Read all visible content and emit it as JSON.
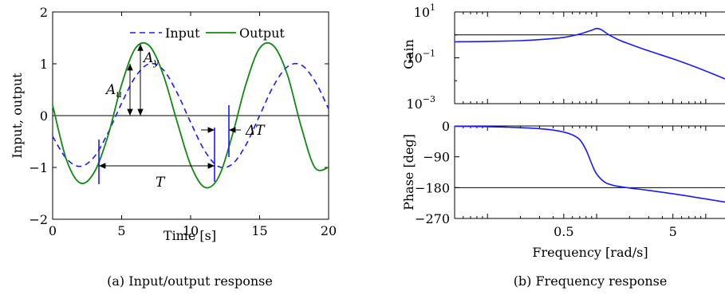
{
  "chart_data": [
    {
      "type": "line",
      "caption": "(a) Input/output response",
      "xlabel": "Time [s]",
      "ylabel": "Input, output",
      "xlim": [
        0,
        20
      ],
      "ylim": [
        -2,
        2
      ],
      "xticks": [
        0,
        5,
        10,
        15,
        20
      ],
      "yticks": [
        -2,
        -1,
        0,
        1,
        2
      ],
      "legend_position": "top-right",
      "series": [
        {
          "name": "Input",
          "style": "dashed",
          "color": "#1a1aff",
          "x": [
            0,
            1,
            2,
            3,
            4,
            5,
            6,
            7,
            8,
            9,
            10,
            11,
            12,
            13,
            14,
            15,
            16,
            17,
            18,
            19,
            20
          ],
          "y": [
            -0.4,
            -0.83,
            -0.98,
            -0.8,
            -0.34,
            0.24,
            0.75,
            1.0,
            0.89,
            0.45,
            -0.13,
            -0.67,
            -0.98,
            -0.94,
            -0.57,
            0.0,
            0.57,
            0.94,
            0.98,
            0.67,
            0.13
          ]
        },
        {
          "name": "Output",
          "style": "solid",
          "color": "#118811",
          "x": [
            0,
            1,
            2,
            3,
            4,
            5,
            6,
            7,
            8,
            9,
            10,
            11,
            12,
            13,
            14,
            15,
            16,
            17,
            18,
            19,
            20
          ],
          "y": [
            0.2,
            -0.85,
            -1.3,
            -1.1,
            -0.4,
            0.6,
            1.3,
            1.35,
            0.8,
            -0.1,
            -0.95,
            -1.38,
            -1.2,
            -0.4,
            0.6,
            1.3,
            1.35,
            0.8,
            -0.2,
            -1.0,
            -1.0
          ]
        }
      ],
      "annotations": [
        {
          "label": "A",
          "sub": "u"
        },
        {
          "label": "A",
          "sub": "y"
        },
        {
          "label": "T"
        },
        {
          "label": "ΔT"
        }
      ]
    },
    {
      "type": "line",
      "caption": "(b) Frequency response",
      "xlabel": "Frequency [rad/s]",
      "xscale": "log",
      "xlim": [
        0.05,
        15
      ],
      "xticks": [
        {
          "value": 0.5,
          "label": "0.5"
        },
        {
          "value": 5,
          "label": "5"
        }
      ],
      "panels": [
        {
          "ylabel": "Gain",
          "yscale": "log",
          "ylim": [
            0.001,
            10
          ],
          "yticks": [
            {
              "value": 10,
              "base": "10",
              "exp": "1"
            },
            {
              "value": 0.1,
              "base": "10",
              "exp": "−1"
            },
            {
              "value": 0.001,
              "base": "10",
              "exp": "−3"
            }
          ],
          "reference_line": 1,
          "series": [
            {
              "color": "#1a1aff",
              "x": [
                0.05,
                0.1,
                0.2,
                0.3,
                0.5,
                0.7,
                0.9,
                1.0,
                1.1,
                1.3,
                1.6,
                2,
                3,
                5,
                8,
                11,
                15
              ],
              "y": [
                0.5,
                0.52,
                0.56,
                0.62,
                0.78,
                1.1,
                1.6,
                1.9,
                1.7,
                1.0,
                0.6,
                0.4,
                0.2,
                0.09,
                0.04,
                0.022,
                0.012
              ]
            }
          ]
        },
        {
          "ylabel": "Phase [deg]",
          "ylim": [
            -270,
            0
          ],
          "yticks": [
            0,
            -90,
            -180,
            -270
          ],
          "reference_line": -180,
          "series": [
            {
              "color": "#1a1aff",
              "x": [
                0.05,
                0.1,
                0.2,
                0.3,
                0.4,
                0.5,
                0.6,
                0.7,
                0.8,
                0.9,
                1.0,
                1.2,
                1.5,
                2,
                3,
                5,
                8,
                15
              ],
              "y": [
                -1,
                -2,
                -5,
                -8,
                -12,
                -18,
                -26,
                -40,
                -70,
                -110,
                -140,
                -165,
                -175,
                -181,
                -188,
                -198,
                -208,
                -222
              ]
            }
          ]
        }
      ]
    }
  ]
}
